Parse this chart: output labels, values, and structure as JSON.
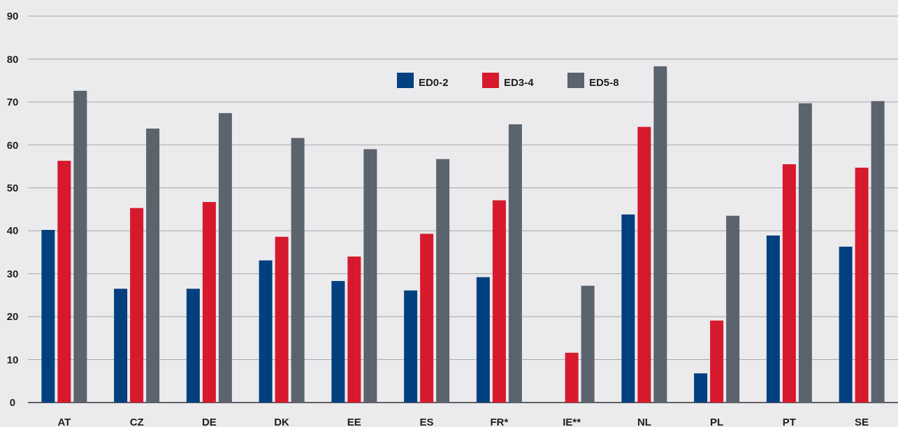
{
  "chart_data": {
    "type": "bar",
    "categories": [
      "AT",
      "CZ",
      "DE",
      "DK",
      "EE",
      "ES",
      "FR*",
      "IE**",
      "NL",
      "PL",
      "PT",
      "SE"
    ],
    "series": [
      {
        "name": "ED0-2",
        "color": "#00407f",
        "values": [
          40.2,
          26.5,
          26.5,
          33.1,
          28.3,
          26.1,
          29.2,
          null,
          43.8,
          6.8,
          38.9,
          36.3
        ]
      },
      {
        "name": "ED3-4",
        "color": "#d7192d",
        "values": [
          56.3,
          45.3,
          46.7,
          38.6,
          34.0,
          39.3,
          47.1,
          11.6,
          64.2,
          19.1,
          55.5,
          54.7
        ]
      },
      {
        "name": "ED5-8",
        "color": "#5b636d",
        "values": [
          72.6,
          63.8,
          67.4,
          61.6,
          59.0,
          56.7,
          64.8,
          27.2,
          78.3,
          43.5,
          69.7,
          70.2
        ]
      }
    ],
    "ylim": [
      0,
      90
    ],
    "yticks": [
      0,
      10,
      20,
      30,
      40,
      50,
      60,
      70,
      80,
      90
    ],
    "grid": "y",
    "legend": "top"
  }
}
